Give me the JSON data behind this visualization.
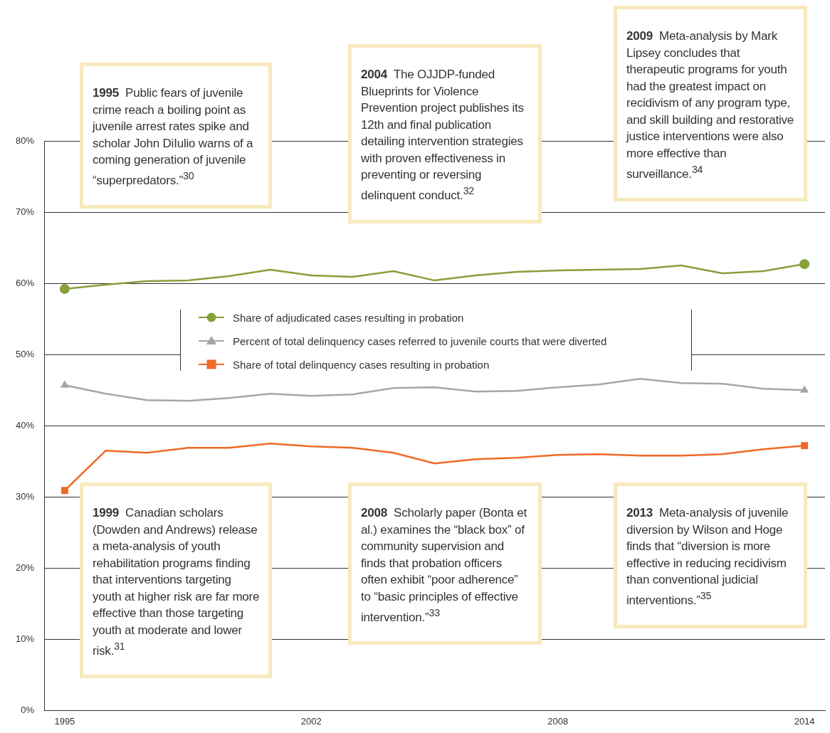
{
  "chart_data": {
    "type": "line",
    "categories": [
      "1995",
      null,
      null,
      null,
      null,
      null,
      "2002",
      null,
      null,
      null,
      null,
      null,
      "2008",
      null,
      null,
      null,
      null,
      null,
      "2014"
    ],
    "series": [
      {
        "name": "Share of adjudicated cases resulting in probation",
        "color": "#86a03a",
        "values": [
          59.2,
          59.8,
          60.3,
          60.4,
          61.0,
          61.9,
          61.1,
          60.9,
          61.7,
          60.4,
          61.1,
          61.6,
          61.8,
          61.9,
          62.0,
          62.5,
          61.4,
          61.7,
          62.7
        ]
      },
      {
        "name": "Percent of total delinquency cases referred to juvenile courts that were diverted",
        "color": "#a6a6a6",
        "values": [
          45.7,
          44.5,
          43.6,
          43.5,
          43.9,
          44.5,
          44.2,
          44.4,
          45.3,
          45.4,
          44.8,
          44.9,
          45.4,
          45.8,
          46.6,
          46.0,
          45.9,
          45.2,
          45.0
        ]
      },
      {
        "name": "Share of total delinquency cases resulting in probation",
        "color": "#f06a26",
        "values": [
          30.9,
          36.5,
          36.2,
          36.9,
          36.9,
          37.5,
          37.1,
          36.9,
          36.2,
          34.7,
          35.3,
          35.5,
          35.9,
          36.0,
          35.8,
          35.8,
          36.0,
          36.7,
          37.2
        ]
      }
    ],
    "ylim": [
      0,
      80
    ],
    "yticks": [
      {
        "value": 0,
        "label": "0%"
      },
      {
        "value": 10,
        "label": "10%"
      },
      {
        "value": 20,
        "label": "20%"
      },
      {
        "value": 30,
        "label": "30%"
      },
      {
        "value": 40,
        "label": "40%"
      },
      {
        "value": 50,
        "label": "50%"
      },
      {
        "value": 60,
        "label": "60%"
      },
      {
        "value": 70,
        "label": "70%"
      },
      {
        "value": 80,
        "label": "80%"
      }
    ],
    "grid": "y",
    "legend": "center",
    "annotations": [
      "1995 Public fears of juvenile crime reach a boiling point as juvenile arrest rates spike and scholar John DiIulio warns of a coming generation of juvenile “superpredators.”$^{30}$",
      "1999 Canadian scholars (Dowden and Andrews) release a meta-analysis of youth rehabilitation programs finding that interventions targeting youth at higher risk are far more effective than those targeting youth at moderate and lower risk.$^{31}$",
      "2004 The OJJDP-funded Blueprints for Violence Prevention project publishes its 12th and final publication detailing intervention strategies with proven effectiveness in preventing or reversing delinquent conduct.$^{32}$",
      "2008 Scholarly paper (Bonta et al.) examines the “black box” of community supervision and finds that probation officers often exhibit “poor adherence” to “basic principles of effective intervention.”$^{33}$",
      "2009 Meta-analysis by Mark Lipsey concludes that therapeutic programs for youth had the greatest impact on recidivism of any program type, and skill building and restorative justice interventions were also more effective than surveillance.$^{34}$",
      "2013 Meta-analysis of juvenile diversion by Wilson and Hoge finds that “diversion is more effective in reducing recidivism than conventional judicial interventions.”$^{35}$"
    ]
  }
}
